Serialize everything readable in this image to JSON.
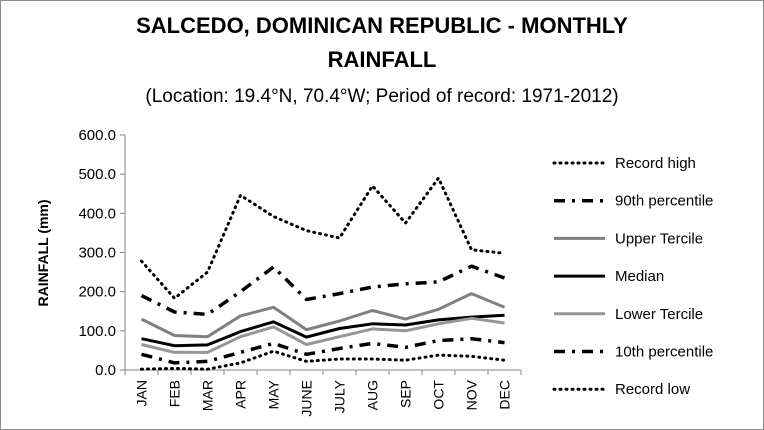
{
  "chart_data": {
    "type": "line",
    "title_line1": "SALCEDO, DOMINICAN REPUBLIC - MONTHLY",
    "title_line2": "RAINFALL",
    "subtitle": "(Location: 19.4°N, 70.4°W; Period of record: 1971-2012)",
    "xlabel": "",
    "ylabel": "RAINFALL (mm)",
    "ylim": [
      0,
      600
    ],
    "yticks": [
      "0.0",
      "100.0",
      "200.0",
      "300.0",
      "400.0",
      "500.0",
      "600.0"
    ],
    "grid": false,
    "legend_position": "right",
    "categories": [
      "JAN",
      "FEB",
      "MAR",
      "APR",
      "MAY",
      "JUNE",
      "JULY",
      "AUG",
      "SEP",
      "OCT",
      "NOV",
      "DEC"
    ],
    "series": [
      {
        "name": "Record high",
        "color": "#000000",
        "style": "dotted",
        "values": [
          278,
          183,
          250,
          446,
          392,
          356,
          337,
          470,
          375,
          490,
          307,
          298
        ]
      },
      {
        "name": "90th percentile",
        "color": "#000000",
        "style": "dashdot",
        "values": [
          190,
          148,
          142,
          200,
          263,
          180,
          195,
          212,
          220,
          225,
          265,
          235
        ]
      },
      {
        "name": "Upper Tercile",
        "color": "#808080",
        "style": "solid",
        "values": [
          130,
          88,
          85,
          138,
          160,
          103,
          125,
          152,
          130,
          155,
          195,
          160
        ]
      },
      {
        "name": "Median",
        "color": "#000000",
        "style": "solid",
        "values": [
          80,
          62,
          64,
          98,
          123,
          84,
          106,
          118,
          115,
          128,
          135,
          140
        ]
      },
      {
        "name": "Lower Tercile",
        "color": "#969696",
        "style": "solid",
        "values": [
          65,
          45,
          45,
          85,
          110,
          65,
          85,
          105,
          100,
          118,
          132,
          120
        ]
      },
      {
        "name": "10th percentile",
        "color": "#000000",
        "style": "dashdot",
        "values": [
          40,
          18,
          22,
          45,
          68,
          40,
          55,
          68,
          58,
          75,
          80,
          70
        ]
      },
      {
        "name": "Record low",
        "color": "#000000",
        "style": "dotted",
        "values": [
          2,
          4,
          2,
          18,
          48,
          22,
          28,
          28,
          25,
          38,
          35,
          25
        ]
      }
    ]
  }
}
